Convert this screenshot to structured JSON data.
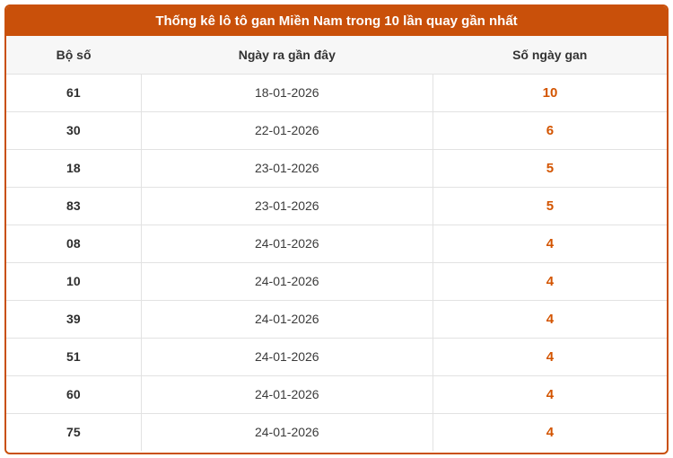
{
  "panel": {
    "title": "Thống kê lô tô gan Miền Nam trong 10 lần quay gần nhất"
  },
  "colors": {
    "accent_orange": "#c9500a",
    "gan_value_orange": "#d35400",
    "header_bg": "#f7f7f7",
    "row_border": "#e2e2e2",
    "header_text": "#333333",
    "title_text": "#ffffff"
  },
  "table": {
    "headers": [
      "Bộ số",
      "Ngày ra gần đây",
      "Số ngày gan"
    ],
    "rows": [
      {
        "number": "61",
        "last_date": "18-01-2026",
        "gan_days": "10"
      },
      {
        "number": "30",
        "last_date": "22-01-2026",
        "gan_days": "6"
      },
      {
        "number": "18",
        "last_date": "23-01-2026",
        "gan_days": "5"
      },
      {
        "number": "83",
        "last_date": "23-01-2026",
        "gan_days": "5"
      },
      {
        "number": "08",
        "last_date": "24-01-2026",
        "gan_days": "4"
      },
      {
        "number": "10",
        "last_date": "24-01-2026",
        "gan_days": "4"
      },
      {
        "number": "39",
        "last_date": "24-01-2026",
        "gan_days": "4"
      },
      {
        "number": "51",
        "last_date": "24-01-2026",
        "gan_days": "4"
      },
      {
        "number": "60",
        "last_date": "24-01-2026",
        "gan_days": "4"
      },
      {
        "number": "75",
        "last_date": "24-01-2026",
        "gan_days": "4"
      }
    ]
  }
}
